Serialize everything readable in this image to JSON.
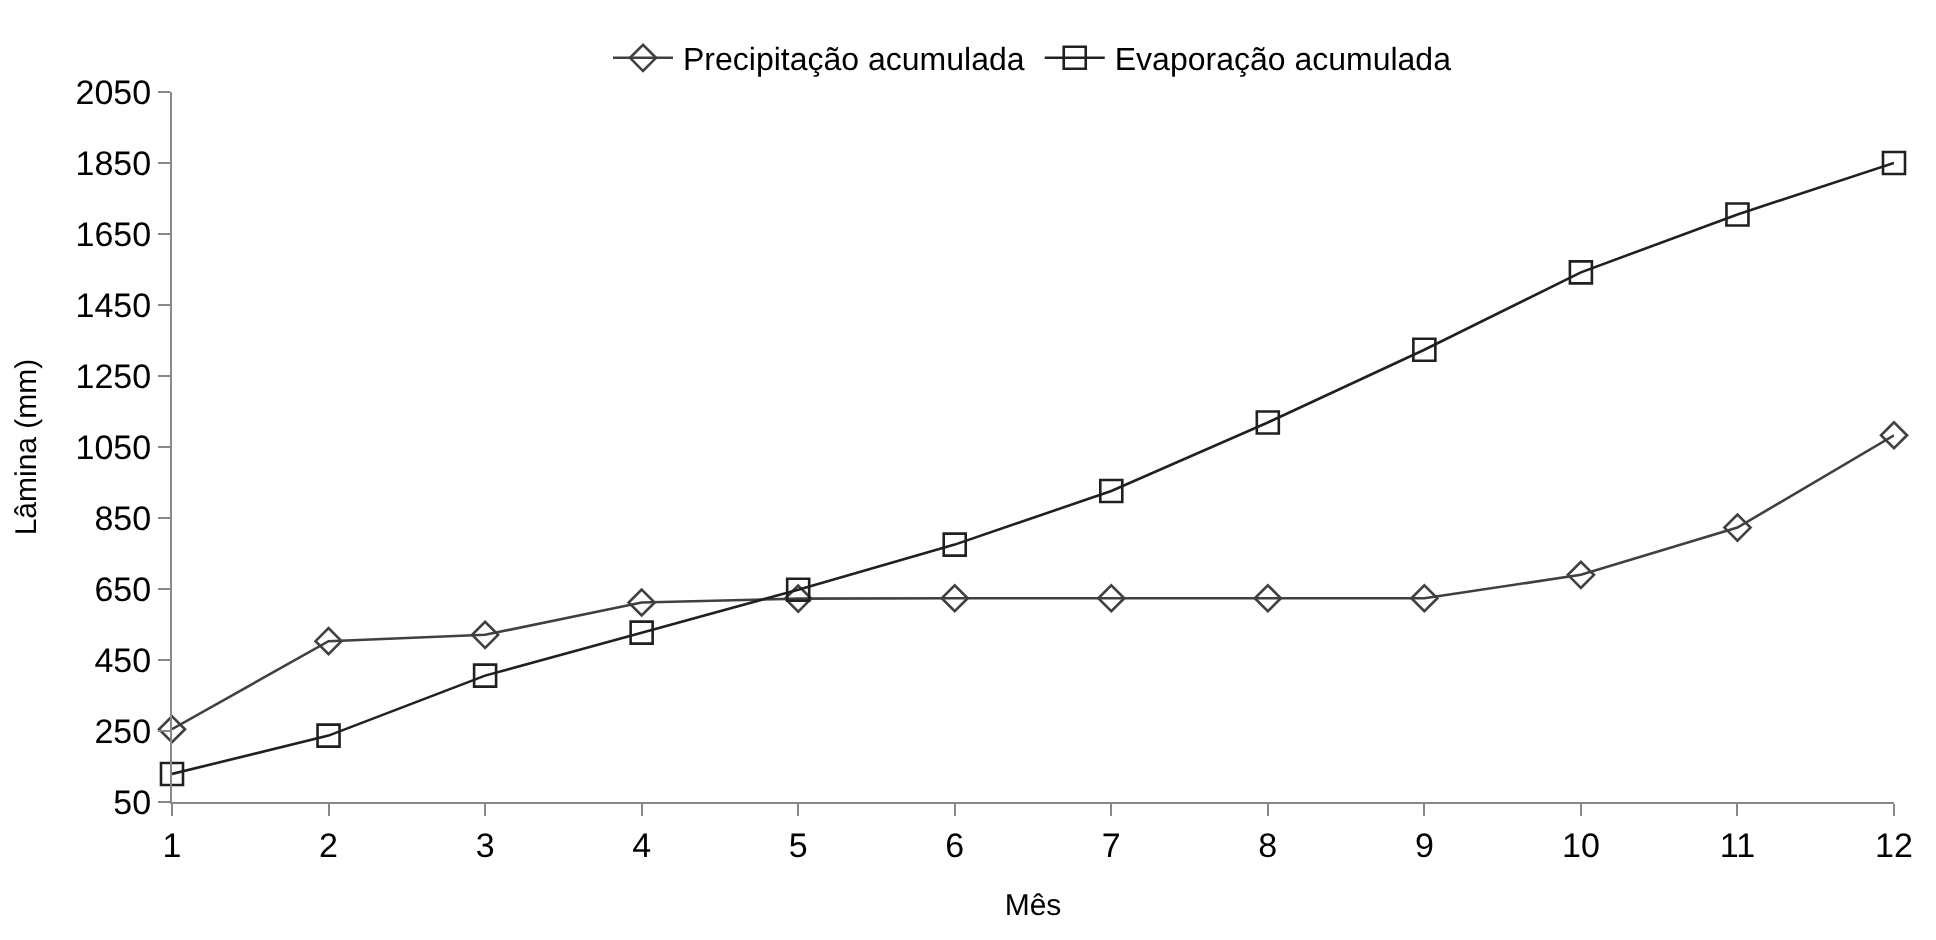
{
  "chart_data": {
    "type": "line",
    "xlabel": "Mês",
    "ylabel": "Lâmina (mm)",
    "x": [
      1,
      2,
      3,
      4,
      5,
      6,
      7,
      8,
      9,
      10,
      11,
      12
    ],
    "series": [
      {
        "name": "Precipitação acumulada",
        "color": "#404040",
        "marker": "diamond",
        "values": [
          255,
          503,
          521,
          612,
          623,
          624,
          624,
          624,
          624,
          690,
          823,
          1083
        ]
      },
      {
        "name": "Evaporação acumulada",
        "color": "#202020",
        "marker": "square",
        "values": [
          129,
          237,
          406,
          527,
          648,
          775,
          926,
          1119,
          1324,
          1542,
          1705,
          1850
        ]
      }
    ],
    "xlim": [
      1,
      12
    ],
    "xticks": [
      1,
      2,
      3,
      4,
      5,
      6,
      7,
      8,
      9,
      10,
      11,
      12
    ],
    "ylim": [
      50,
      2050
    ],
    "yticks": [
      50,
      250,
      450,
      650,
      850,
      1050,
      1250,
      1450,
      1650,
      1850,
      2050
    ],
    "legend": "top",
    "line_style": "solid"
  }
}
